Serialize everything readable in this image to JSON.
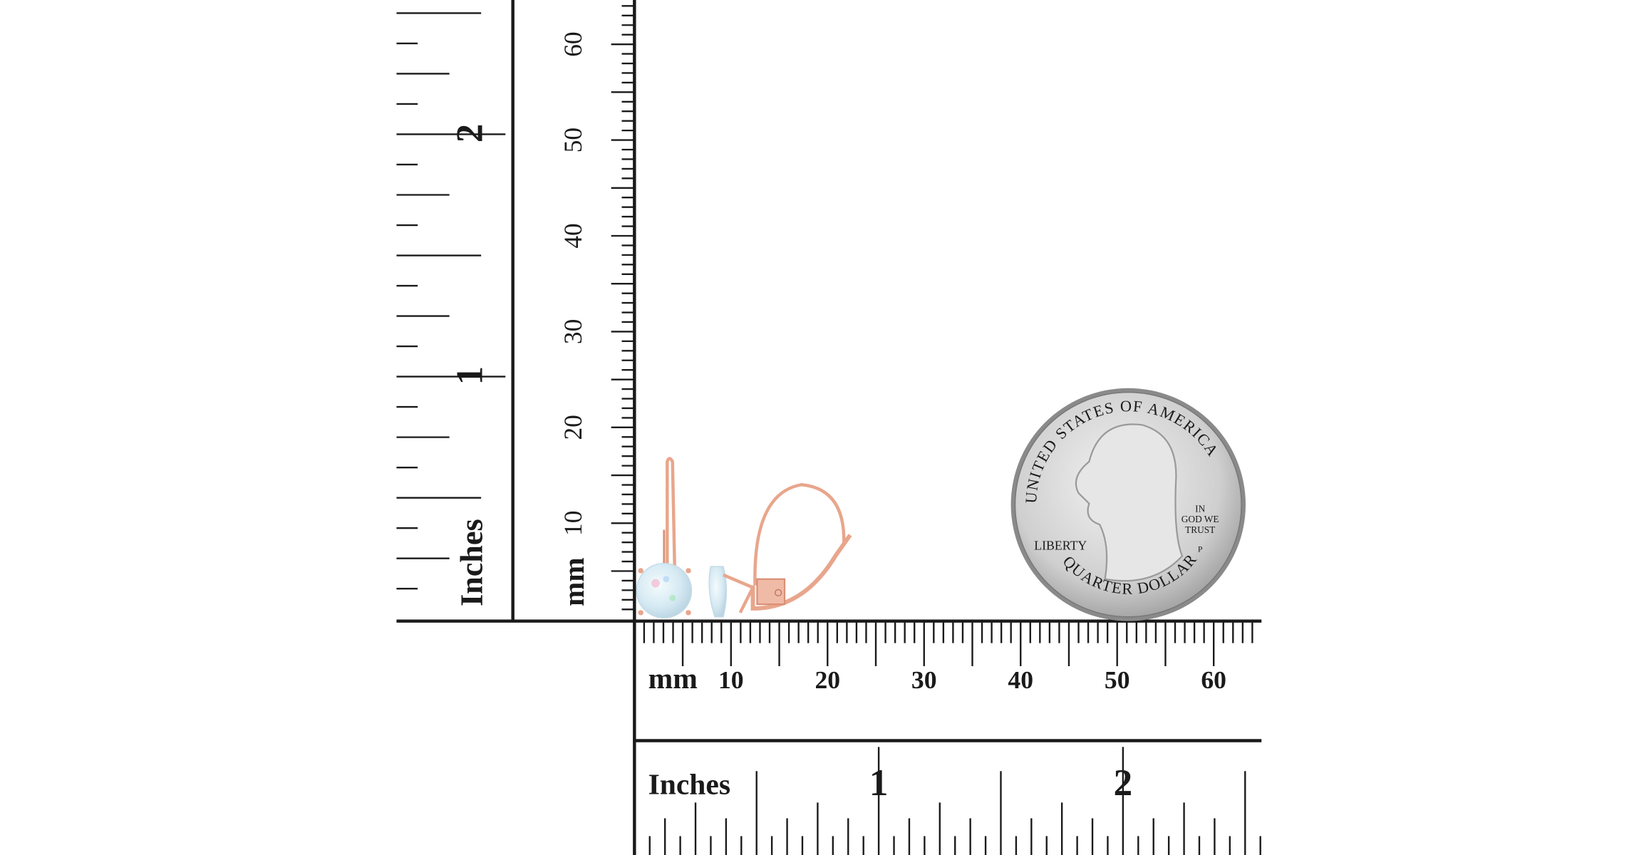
{
  "rulers": {
    "left_inches": {
      "unit_label": "Inches",
      "tick_labels": [
        "1",
        "2"
      ]
    },
    "vertical_mm": {
      "unit_label": "mm",
      "tick_labels": [
        "10",
        "20",
        "30",
        "40",
        "50",
        "60"
      ]
    },
    "horizontal_mm": {
      "unit_label": "mm",
      "tick_labels": [
        "10",
        "20",
        "30",
        "40",
        "50",
        "60"
      ]
    },
    "bottom_inches": {
      "unit_label": "Inches",
      "tick_labels": [
        "1",
        "2"
      ]
    }
  },
  "coin": {
    "top_text": "UNITED STATES OF AMERICA",
    "bottom_text": "QUARTER DOLLAR",
    "left_text": "LIBERTY",
    "motto": [
      "IN",
      "GOD WE",
      "TRUST"
    ],
    "mint_mark": "P"
  },
  "colors": {
    "ink": "#1a1a1a",
    "rose_gold": "#e8a68c",
    "opal": "#dfeef5",
    "coin": "#c9c9c9"
  }
}
